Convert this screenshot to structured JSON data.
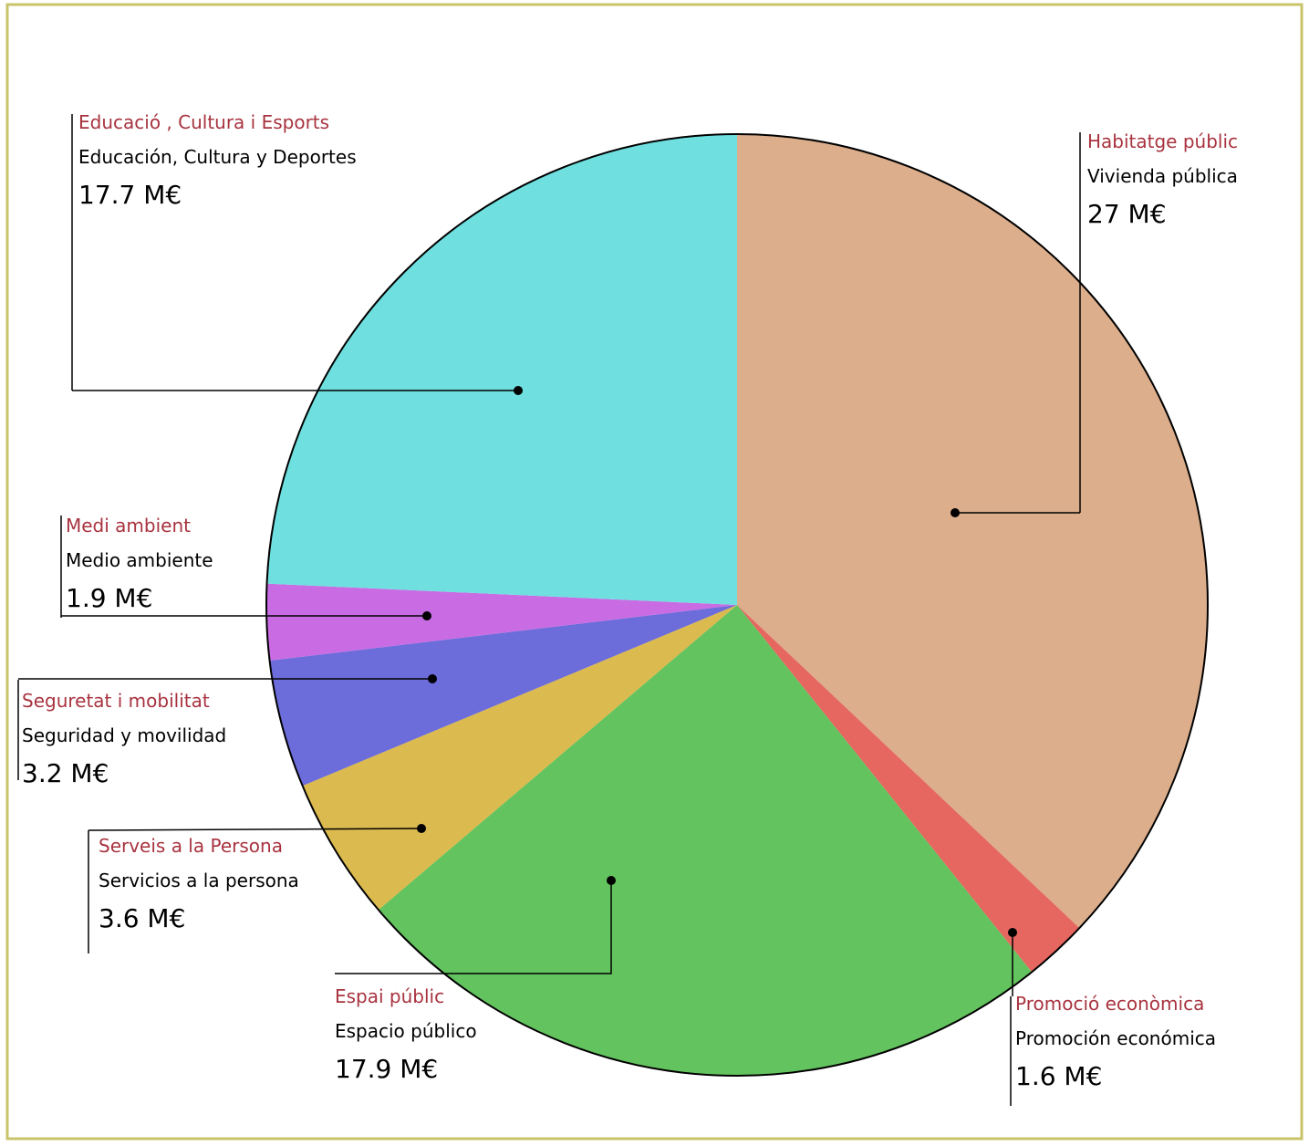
{
  "chart_data": {
    "type": "pie",
    "categories": [
      "Habitatge públic",
      "Promoció econòmica",
      "Espai públic",
      "Serveis a la Persona",
      "Seguretat i mobilitat",
      "Medi ambient",
      "Educació , Cultura i Esports"
    ],
    "categories_es": [
      "Vivienda pública",
      "Promoción económica",
      "Espacio público",
      "Servicios a la persona",
      "Seguridad y movilidad",
      "Medio ambiente",
      "Educación, Cultura y Deportes"
    ],
    "values": [
      27,
      1.6,
      17.9,
      3.6,
      3.2,
      1.9,
      17.7
    ],
    "value_labels": [
      "27 M€",
      "1.6 M€",
      "17.9 M€",
      "3.6 M€",
      "3.2 M€",
      "1.9 M€",
      "17.7 M€"
    ],
    "colors": [
      "#d8a57f",
      "#e2574f",
      "#52bd4c",
      "#d7b23c",
      "#5c5cd6",
      "#c35ce0",
      "#5fdcdc"
    ]
  }
}
